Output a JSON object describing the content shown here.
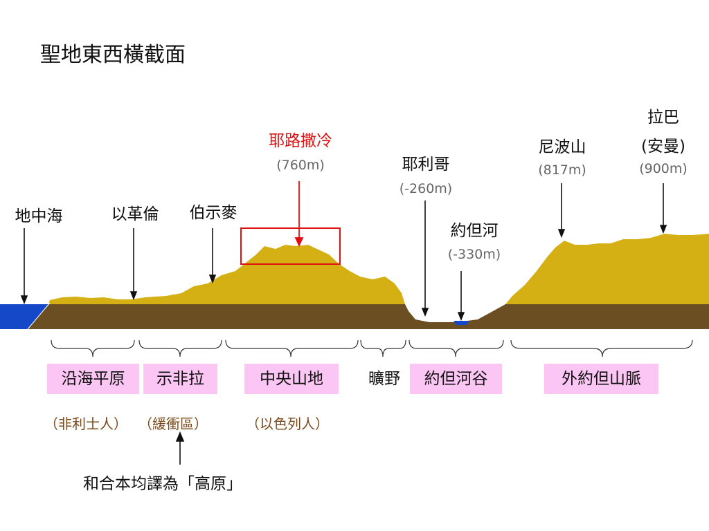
{
  "title": "聖地東西橫截面",
  "colors": {
    "terrain": "#d4b014",
    "base": "#6b4f22",
    "sea": "#1448c8",
    "highlight": "#e01010",
    "region_bg": "#fbc6f3",
    "people_text": "#7a4a1a"
  },
  "places": {
    "mediterranean": "地中海",
    "lebanon": "以革倫",
    "beth_shemesh": "伯示麥",
    "jerusalem": {
      "name": "耶路撒冷",
      "elevation": "(760m)"
    },
    "jericho": {
      "name": "耶利哥",
      "elevation": "(-260m)"
    },
    "jordan_river": {
      "name": "約但河",
      "elevation": "(-330m)"
    },
    "mt_nebo": {
      "name": "尼波山",
      "elevation": "(817m)"
    },
    "rabbah": {
      "name": "拉巴",
      "name2": "(安曼)",
      "elevation": "(900m)"
    }
  },
  "regions": {
    "coastal_plain": "沿海平原",
    "shephelah": "示非拉",
    "central_highlands": "中央山地",
    "wilderness": "曠野",
    "jordan_valley": "約但河谷",
    "transjordan": "外約但山脈"
  },
  "peoples": {
    "philistines": "（非利士人）",
    "buffer": "（緩衝區）",
    "israelites": "（以色列人）"
  },
  "note": "和合本均譯為「高原」"
}
